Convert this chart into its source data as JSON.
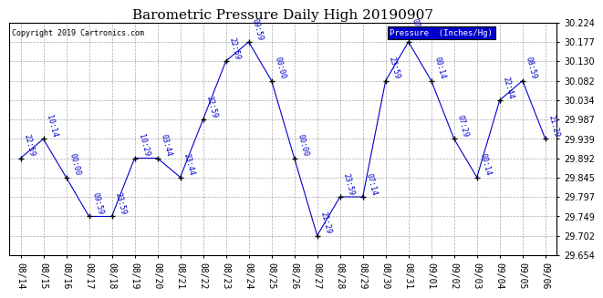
{
  "title": "Barometric Pressure Daily High 20190907",
  "copyright": "Copyright 2019 Cartronics.com",
  "legend_label": "Pressure  (Inches/Hg)",
  "dates": [
    "08/14",
    "08/15",
    "08/16",
    "08/17",
    "08/18",
    "08/19",
    "08/20",
    "08/21",
    "08/22",
    "08/23",
    "08/24",
    "08/25",
    "08/26",
    "08/27",
    "08/28",
    "08/29",
    "08/30",
    "08/31",
    "09/01",
    "09/02",
    "09/03",
    "09/04",
    "09/05",
    "09/06"
  ],
  "values": [
    29.892,
    29.939,
    29.845,
    29.749,
    29.749,
    29.892,
    29.892,
    29.845,
    29.987,
    30.13,
    30.177,
    30.082,
    29.892,
    29.702,
    29.797,
    29.797,
    30.082,
    30.177,
    30.082,
    29.939,
    29.845,
    30.034,
    30.082,
    29.939
  ],
  "time_labels": [
    "22:59",
    "10:14",
    "00:00",
    "09:59",
    "23:59",
    "10:29",
    "03:44",
    "23:44",
    "22:59",
    "22:59",
    "09:59",
    "00:00",
    "00:00",
    "21:29",
    "23:59",
    "07:14",
    "23:59",
    "07:44",
    "00:14",
    "07:29",
    "00:14",
    "22:44",
    "08:59",
    "21:29"
  ],
  "ylim_lo": 29.654,
  "ylim_hi": 30.224,
  "yticks": [
    29.654,
    29.702,
    29.749,
    29.797,
    29.845,
    29.892,
    29.939,
    29.987,
    30.034,
    30.082,
    30.13,
    30.177,
    30.224
  ],
  "line_color": "#0000cc",
  "marker_color": "#000000",
  "bg_color": "#ffffff",
  "grid_color": "#aaaaaa",
  "title_fontsize": 11,
  "tick_fontsize": 7,
  "annotation_fontsize": 6,
  "legend_bg": "#0000cc",
  "legend_fg": "#ffffff"
}
